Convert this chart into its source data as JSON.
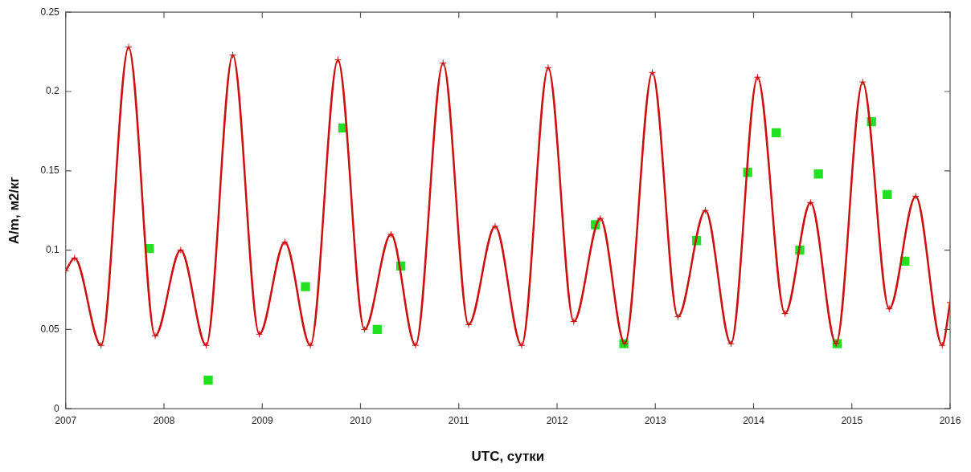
{
  "chart_data": {
    "type": "line",
    "xlabel": "UTC, сутки",
    "ylabel": "A/m, м2/кг",
    "xlim": [
      2007,
      2016
    ],
    "xticks": [
      2007,
      2008,
      2009,
      2010,
      2011,
      2012,
      2013,
      2014,
      2015,
      2016
    ],
    "ylim": [
      0,
      0.25
    ],
    "yticks": [
      0,
      0.05,
      0.1,
      0.15,
      0.2,
      0.25
    ],
    "grid": false,
    "legend": false,
    "series": [
      {
        "type": "line",
        "marker": "cross",
        "line_style": "solid",
        "color": "#cc1111",
        "x": [
          2007.0,
          2007.09,
          2007.36,
          2007.64,
          2007.91,
          2008.17,
          2008.43,
          2008.7,
          2008.97,
          2009.23,
          2009.49,
          2009.77,
          2010.04,
          2010.31,
          2010.56,
          2010.84,
          2011.1,
          2011.37,
          2011.64,
          2011.91,
          2012.17,
          2012.44,
          2012.69,
          2012.97,
          2013.23,
          2013.51,
          2013.77,
          2014.04,
          2014.32,
          2014.58,
          2014.84,
          2015.11,
          2015.38,
          2015.65,
          2015.92,
          2016.0
        ],
        "values": [
          0.087,
          0.095,
          0.04,
          0.228,
          0.046,
          0.1,
          0.04,
          0.223,
          0.047,
          0.105,
          0.04,
          0.22,
          0.05,
          0.11,
          0.04,
          0.218,
          0.053,
          0.115,
          0.04,
          0.215,
          0.055,
          0.12,
          0.041,
          0.212,
          0.058,
          0.125,
          0.041,
          0.209,
          0.06,
          0.13,
          0.041,
          0.206,
          0.063,
          0.134,
          0.04,
          0.067
        ]
      },
      {
        "type": "scatter",
        "marker": "square",
        "color": "#22e022",
        "x": [
          2007.85,
          2008.45,
          2009.44,
          2009.82,
          2010.17,
          2010.41,
          2012.39,
          2012.68,
          2013.42,
          2013.94,
          2014.23,
          2014.47,
          2014.66,
          2014.85,
          2015.2,
          2015.36,
          2015.54
        ],
        "values": [
          0.101,
          0.018,
          0.077,
          0.177,
          0.05,
          0.09,
          0.116,
          0.041,
          0.106,
          0.149,
          0.174,
          0.1,
          0.148,
          0.041,
          0.181,
          0.135,
          0.093
        ]
      }
    ]
  }
}
